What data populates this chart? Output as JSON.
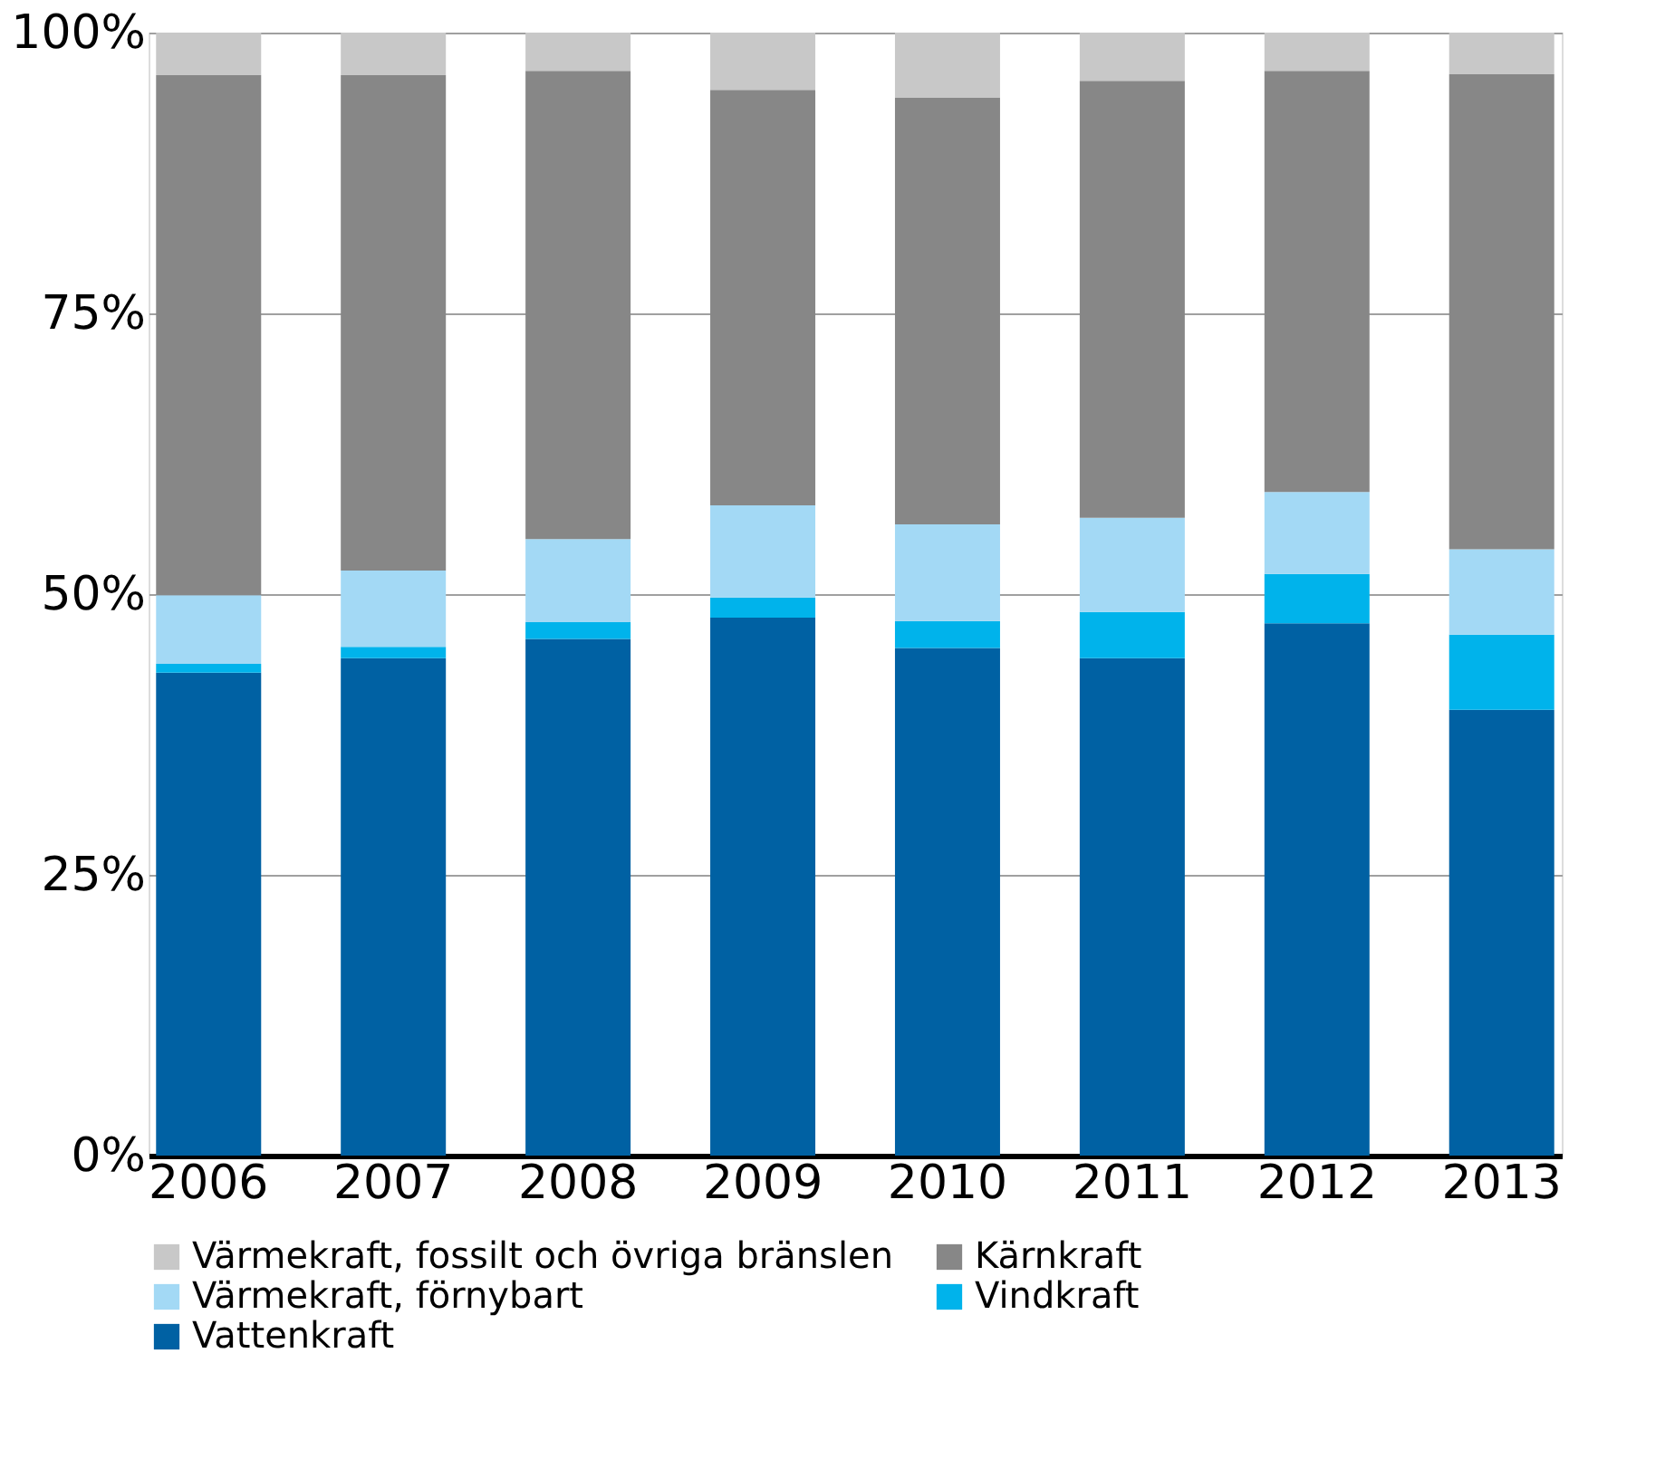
{
  "chart_data": {
    "type": "bar",
    "stacked": true,
    "categories": [
      "2006",
      "2007",
      "2008",
      "2009",
      "2010",
      "2011",
      "2012",
      "2013"
    ],
    "series": [
      {
        "name": "Vattenkraft",
        "color": "#0061a3",
        "values": [
          43.0,
          44.3,
          46.0,
          47.9,
          45.2,
          44.3,
          47.4,
          39.7
        ]
      },
      {
        "name": "Vindkraft",
        "color": "#00b3eb",
        "values": [
          0.8,
          1.0,
          1.5,
          1.8,
          2.4,
          4.1,
          4.4,
          6.7
        ]
      },
      {
        "name": "Värmekraft, förnybart",
        "color": "#a3d9f5",
        "values": [
          6.1,
          6.8,
          7.4,
          8.2,
          8.6,
          8.4,
          7.3,
          7.6
        ]
      },
      {
        "name": "Kärnkraft",
        "color": "#878787",
        "values": [
          46.3,
          44.1,
          41.7,
          37.0,
          38.0,
          38.9,
          37.5,
          42.3
        ]
      },
      {
        "name": "Värmekraft, fossilt och övriga bränslen",
        "color": "#c8c8c8",
        "values": [
          3.8,
          3.8,
          3.4,
          5.1,
          5.8,
          4.3,
          3.4,
          3.7
        ]
      }
    ],
    "ylim": [
      0,
      100
    ],
    "yticks": [
      {
        "value": 0,
        "label": "0%"
      },
      {
        "value": 25,
        "label": "25%"
      },
      {
        "value": 50,
        "label": "50%"
      },
      {
        "value": 75,
        "label": "75%"
      },
      {
        "value": 100,
        "label": "100%"
      }
    ],
    "grid": "y",
    "legend": "bottom"
  }
}
